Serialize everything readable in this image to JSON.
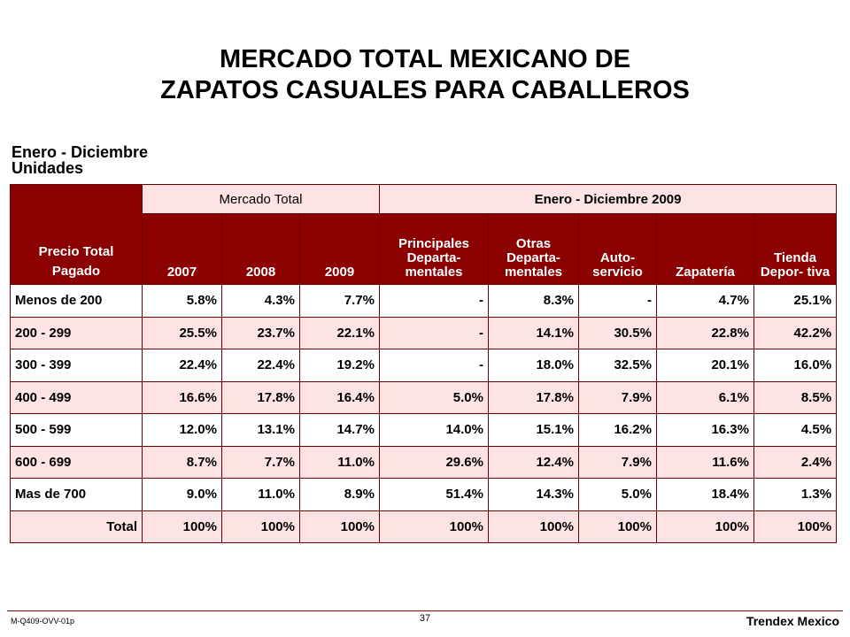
{
  "title": {
    "line1": "MERCADO TOTAL MEXICANO DE",
    "line2": "ZAPATOS CASUALES PARA CABALLEROS"
  },
  "subtitle": {
    "line1": "Enero - Diciembre",
    "line2": "Unidades"
  },
  "table": {
    "group_headers": {
      "mercado_total": "Mercado Total",
      "enero_diciembre": "Enero - Diciembre 2009"
    },
    "row_header_top": "Precio Total",
    "row_header_bottom": "Pagado",
    "columns": [
      "2007",
      "2008",
      "2009",
      "Principales Departa- mentales",
      "Otras Departa- mentales",
      "Auto- servicio",
      "Zapatería",
      "Tienda Depor- tiva"
    ],
    "rows": [
      {
        "label": "Menos de 200",
        "cells": [
          "5.8%",
          "4.3%",
          "7.7%",
          "-",
          "8.3%",
          "-",
          "4.7%",
          "25.1%"
        ]
      },
      {
        "label": "200 - 299",
        "cells": [
          "25.5%",
          "23.7%",
          "22.1%",
          "-",
          "14.1%",
          "30.5%",
          "22.8%",
          "42.2%"
        ]
      },
      {
        "label": "300 - 399",
        "cells": [
          "22.4%",
          "22.4%",
          "19.2%",
          "-",
          "18.0%",
          "32.5%",
          "20.1%",
          "16.0%"
        ]
      },
      {
        "label": "400 - 499",
        "cells": [
          "16.6%",
          "17.8%",
          "16.4%",
          "5.0%",
          "17.8%",
          "7.9%",
          "6.1%",
          "8.5%"
        ]
      },
      {
        "label": "500 - 599",
        "cells": [
          "12.0%",
          "13.1%",
          "14.7%",
          "14.0%",
          "15.1%",
          "16.2%",
          "16.3%",
          "4.5%"
        ]
      },
      {
        "label": "600 - 699",
        "cells": [
          "8.7%",
          "7.7%",
          "11.0%",
          "29.6%",
          "12.4%",
          "7.9%",
          "11.6%",
          "2.4%"
        ]
      },
      {
        "label": "Mas de 700",
        "cells": [
          "9.0%",
          "11.0%",
          "8.9%",
          "51.4%",
          "14.3%",
          "5.0%",
          "18.4%",
          "1.3%"
        ]
      },
      {
        "label": "Total",
        "cells": [
          "100%",
          "100%",
          "100%",
          "100%",
          "100%",
          "100%",
          "100%",
          "100%"
        ]
      }
    ]
  },
  "footer": {
    "code": "M-Q409-OVV-01p",
    "page": "37",
    "brand": "Trendex Mexico"
  },
  "colors": {
    "header_dark": "#8b0000",
    "row_pink": "#fde3e3",
    "border": "#6b0000"
  }
}
